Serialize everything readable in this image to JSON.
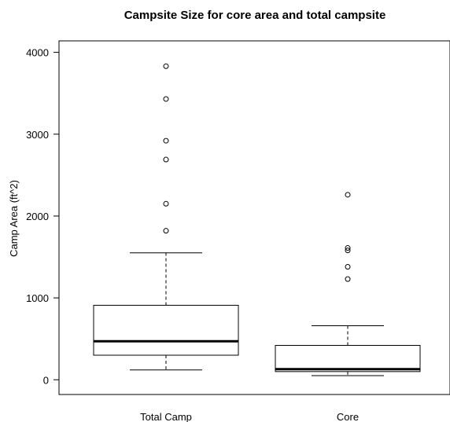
{
  "chart_data": {
    "type": "box",
    "title": "Campsite Size for core area and total campsite",
    "xlabel": "",
    "ylabel": "Camp Area (ft^2)",
    "ylim": [
      -180,
      4140
    ],
    "yticks": [
      0,
      1000,
      2000,
      3000,
      4000
    ],
    "ytick_labels": [
      "0",
      "1000",
      "2000",
      "3000",
      "4000"
    ],
    "grid": false,
    "legend": "none",
    "categories": [
      "Total Camp",
      "Core"
    ],
    "boxes": [
      {
        "category": "Total Camp",
        "whisker_low": 120,
        "q1": 300,
        "median": 470,
        "q3": 910,
        "whisker_high": 1550,
        "outliers": [
          1820,
          2150,
          2690,
          2920,
          3430,
          3830
        ]
      },
      {
        "category": "Core",
        "whisker_low": 50,
        "q1": 100,
        "median": 130,
        "q3": 420,
        "whisker_high": 660,
        "outliers": [
          1230,
          1380,
          1580,
          1610,
          2260
        ]
      }
    ],
    "colors": {
      "stroke": "#000000",
      "fill": "#ffffff"
    }
  }
}
